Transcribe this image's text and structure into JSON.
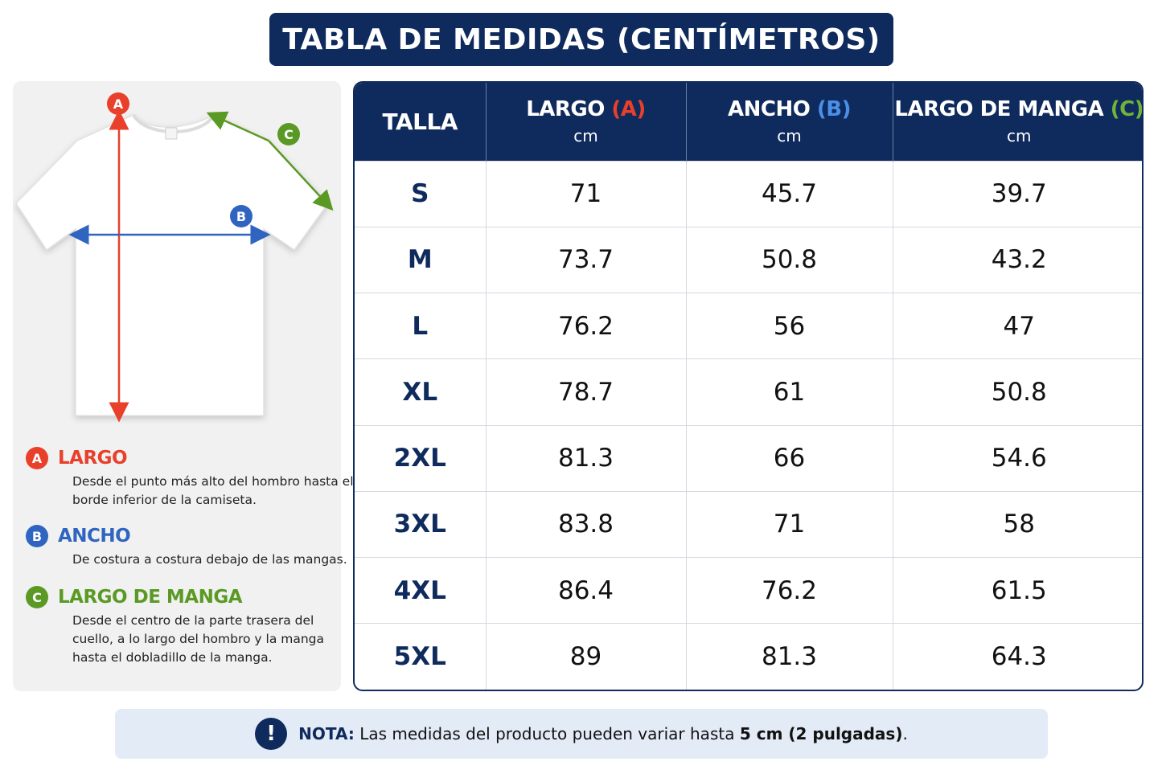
{
  "title": "TABLA DE MEDIDAS (CENTÍMETROS)",
  "diagram": {
    "labels": [
      "A",
      "B",
      "C"
    ],
    "colors": {
      "A": "#e8402a",
      "B": "#2f65c0",
      "C": "#5a9a24"
    }
  },
  "legend": [
    {
      "letter": "A",
      "name": "LARGO",
      "desc": "Desde el punto más alto del hombro hasta el borde inferior de la camiseta."
    },
    {
      "letter": "B",
      "name": "ANCHO",
      "desc": "De costura a costura debajo de las mangas."
    },
    {
      "letter": "C",
      "name": "LARGO DE MANGA",
      "desc": "Desde el centro de la parte trasera del cuello, a lo largo del hombro y la manga hasta el dobladillo de la manga."
    }
  ],
  "table": {
    "headers": {
      "size": "TALLA",
      "largo": "LARGO",
      "largo_tag": "(A)",
      "ancho": "ANCHO",
      "ancho_tag": "(B)",
      "manga": "LARGO DE MANGA",
      "manga_tag": "(C)",
      "unit": "cm"
    },
    "rows": [
      [
        "S",
        "71",
        "45.7",
        "39.7"
      ],
      [
        "M",
        "73.7",
        "50.8",
        "43.2"
      ],
      [
        "L",
        "76.2",
        "56",
        "47"
      ],
      [
        "XL",
        "78.7",
        "61",
        "50.8"
      ],
      [
        "2XL",
        "81.3",
        "66",
        "54.6"
      ],
      [
        "3XL",
        "83.8",
        "71",
        "58"
      ],
      [
        "4XL",
        "86.4",
        "76.2",
        "61.5"
      ],
      [
        "5XL",
        "89",
        "81.3",
        "64.3"
      ]
    ]
  },
  "note": {
    "icon": "!",
    "label": "NOTA:",
    "text": "Las medidas del producto pueden variar hasta",
    "strong": "5 cm (2 pulgadas)",
    "end": "."
  }
}
